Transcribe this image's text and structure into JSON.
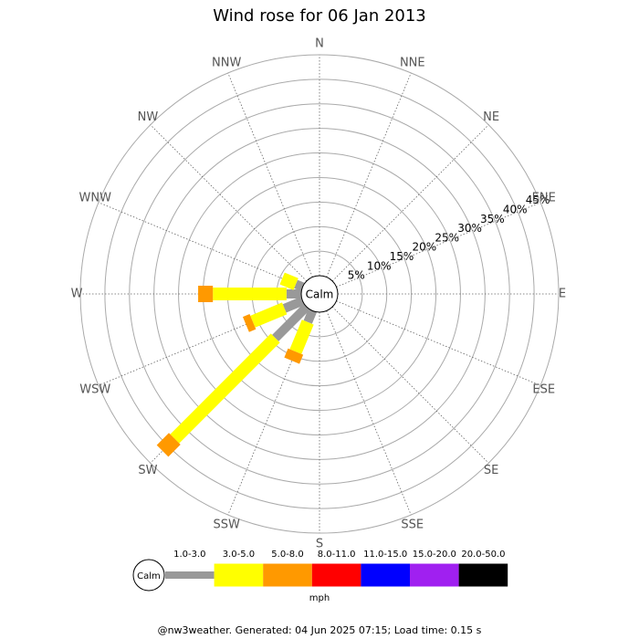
{
  "chart_data": {
    "type": "wind_rose",
    "title": "Wind rose for 06 Jan 2013",
    "categories": [
      "N",
      "NNE",
      "NE",
      "ENE",
      "E",
      "ESE",
      "SE",
      "SSE",
      "S",
      "SSW",
      "SW",
      "WSW",
      "W",
      "WNW",
      "NW",
      "NNW"
    ],
    "calm_label": "Calm",
    "rlim": [
      0,
      45
    ],
    "rticks": [
      {
        "value": 5,
        "label": "5%"
      },
      {
        "value": 10,
        "label": "10%"
      },
      {
        "value": 15,
        "label": "15%"
      },
      {
        "value": 20,
        "label": "20%"
      },
      {
        "value": 25,
        "label": "25%"
      },
      {
        "value": 30,
        "label": "30%"
      },
      {
        "value": 35,
        "label": "35%"
      },
      {
        "value": 40,
        "label": "40%"
      },
      {
        "value": 45,
        "label": "45%"
      }
    ],
    "series": [
      {
        "name": "1.0-3.0",
        "color": "#999999",
        "values": [
          0,
          0,
          0,
          0,
          0,
          0,
          0,
          0,
          0,
          2.5,
          9,
          4,
          3,
          1.5,
          0,
          0
        ]
      },
      {
        "name": "3.0-5.0",
        "color": "#ffff00",
        "values": [
          0,
          0,
          0,
          0,
          0,
          0,
          0,
          0,
          0,
          6.5,
          29,
          7,
          15,
          3,
          0,
          0
        ]
      },
      {
        "name": "5.0-8.0",
        "color": "#ff9900",
        "values": [
          0,
          0,
          0,
          0,
          0,
          0,
          0,
          0,
          0,
          2,
          3.5,
          1.5,
          3,
          0,
          0,
          0
        ]
      },
      {
        "name": "8.0-11.0",
        "color": "#ff0000",
        "values": [
          0,
          0,
          0,
          0,
          0,
          0,
          0,
          0,
          0,
          0,
          0,
          0,
          0,
          0,
          0,
          0
        ]
      },
      {
        "name": "11.0-15.0",
        "color": "#0000ff",
        "values": [
          0,
          0,
          0,
          0,
          0,
          0,
          0,
          0,
          0,
          0,
          0,
          0,
          0,
          0,
          0,
          0
        ]
      },
      {
        "name": "15.0-20.0",
        "color": "#a020f0",
        "values": [
          0,
          0,
          0,
          0,
          0,
          0,
          0,
          0,
          0,
          0,
          0,
          0,
          0,
          0,
          0,
          0
        ]
      },
      {
        "name": "20.0-50.0",
        "color": "#000000",
        "values": [
          0,
          0,
          0,
          0,
          0,
          0,
          0,
          0,
          0,
          0,
          0,
          0,
          0,
          0,
          0,
          0
        ]
      }
    ],
    "legend_unit": "mph",
    "footer": "@nw3weather. Generated: 04 Jun 2025 07:15; Load time: 0.15 s"
  }
}
